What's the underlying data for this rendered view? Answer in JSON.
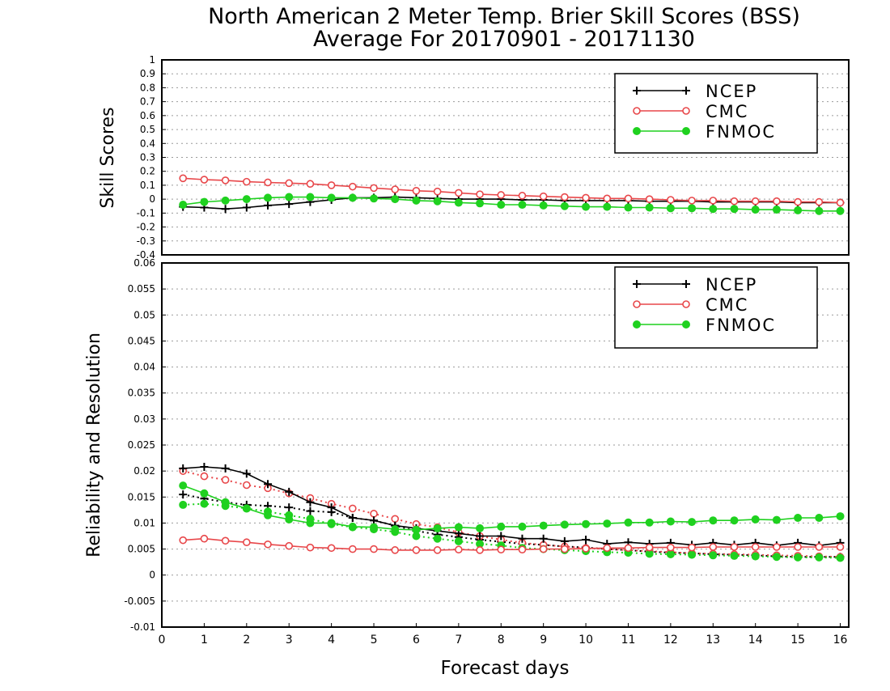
{
  "title_line1": "North American 2 Meter Temp. Brier Skill Scores (BSS)",
  "title_line2": "Average For 20170901 - 20171130",
  "colors": {
    "NCEP": "#000000",
    "CMC": "#e8474a",
    "FNMOC": "#1fd11f"
  },
  "chart_data": [
    {
      "type": "line",
      "ylabel": "Skill Scores",
      "xlabel": "",
      "xlim": [
        0,
        16.2
      ],
      "ylim": [
        -0.4,
        1
      ],
      "yticks": [
        "1",
        "0.9",
        "0.8",
        "0.7",
        "0.6",
        "0.5",
        "0.4",
        "0.3",
        "0.2",
        "0.1",
        "0",
        "-0.1",
        "-0.2",
        "-0.3",
        "-0.4"
      ],
      "grid": "dotted horizontal",
      "legend": "top-right",
      "x": [
        0.5,
        1,
        1.5,
        2,
        2.5,
        3,
        3.5,
        4,
        4.5,
        5,
        5.5,
        6,
        6.5,
        7,
        7.5,
        8,
        8.5,
        9,
        9.5,
        10,
        10.5,
        11,
        11.5,
        12,
        12.5,
        13,
        13.5,
        14,
        14.5,
        15,
        15.5,
        16
      ],
      "series": [
        {
          "name": "NCEP",
          "marker": "plus",
          "values": [
            -0.055,
            -0.06,
            -0.07,
            -0.06,
            -0.045,
            -0.035,
            -0.02,
            -0.005,
            0.01,
            0.01,
            0.015,
            0.01,
            0.005,
            0.0,
            0.0,
            0.0,
            -0.005,
            -0.005,
            -0.01,
            -0.01,
            -0.01,
            -0.01,
            -0.015,
            -0.015,
            -0.015,
            -0.02,
            -0.02,
            -0.02,
            -0.02,
            -0.025,
            -0.025,
            -0.025
          ]
        },
        {
          "name": "CMC",
          "marker": "open-circle",
          "values": [
            0.15,
            0.14,
            0.135,
            0.125,
            0.12,
            0.115,
            0.11,
            0.1,
            0.09,
            0.08,
            0.07,
            0.06,
            0.055,
            0.045,
            0.035,
            0.03,
            0.025,
            0.02,
            0.015,
            0.01,
            0.005,
            0.005,
            0.0,
            -0.005,
            -0.01,
            -0.01,
            -0.015,
            -0.015,
            -0.015,
            -0.02,
            -0.02,
            -0.025
          ]
        },
        {
          "name": "FNMOC",
          "marker": "filled-circle",
          "values": [
            -0.04,
            -0.02,
            -0.01,
            0.0,
            0.01,
            0.015,
            0.015,
            0.01,
            0.01,
            0.005,
            0.0,
            -0.01,
            -0.015,
            -0.025,
            -0.03,
            -0.04,
            -0.04,
            -0.045,
            -0.05,
            -0.055,
            -0.055,
            -0.06,
            -0.06,
            -0.065,
            -0.065,
            -0.07,
            -0.07,
            -0.075,
            -0.075,
            -0.08,
            -0.085,
            -0.085
          ]
        }
      ]
    },
    {
      "type": "line",
      "ylabel": "Reliability and Resolution",
      "xlabel": "Forecast days",
      "xlim": [
        0,
        16.2
      ],
      "ylim": [
        -0.01,
        0.06
      ],
      "yticks": [
        "0.06",
        "0.055",
        "0.05",
        "0.045",
        "0.04",
        "0.035",
        "0.03",
        "0.025",
        "0.02",
        "0.015",
        "0.01",
        "0.005",
        "0",
        "-0.005",
        "-0.01"
      ],
      "xticks": [
        "0",
        "1",
        "2",
        "3",
        "4",
        "5",
        "6",
        "7",
        "8",
        "9",
        "10",
        "11",
        "12",
        "13",
        "14",
        "15",
        "16"
      ],
      "grid": "dotted horizontal",
      "legend": "top-right",
      "x": [
        0.5,
        1,
        1.5,
        2,
        2.5,
        3,
        3.5,
        4,
        4.5,
        5,
        5.5,
        6,
        6.5,
        7,
        7.5,
        8,
        8.5,
        9,
        9.5,
        10,
        10.5,
        11,
        11.5,
        12,
        12.5,
        13,
        13.5,
        14,
        14.5,
        15,
        15.5,
        16
      ],
      "series": [
        {
          "name": "NCEP",
          "marker": "plus",
          "linestyle": "solid",
          "values": [
            0.0205,
            0.0208,
            0.0205,
            0.0195,
            0.0175,
            0.016,
            0.014,
            0.013,
            0.011,
            0.0105,
            0.0095,
            0.009,
            0.0085,
            0.008,
            0.0075,
            0.0075,
            0.007,
            0.007,
            0.0065,
            0.0068,
            0.006,
            0.0063,
            0.006,
            0.0062,
            0.0058,
            0.0062,
            0.0058,
            0.0062,
            0.0057,
            0.0062,
            0.0057,
            0.0062
          ]
        },
        {
          "name": "CMC",
          "marker": "open-circle",
          "linestyle": "solid",
          "values": [
            0.0067,
            0.007,
            0.0066,
            0.0063,
            0.0059,
            0.0056,
            0.0053,
            0.0052,
            0.005,
            0.005,
            0.0048,
            0.0048,
            0.0048,
            0.0049,
            0.0048,
            0.0049,
            0.0049,
            0.005,
            0.005,
            0.0051,
            0.0052,
            0.0052,
            0.0053,
            0.0053,
            0.0053,
            0.0054,
            0.0054,
            0.0054,
            0.0054,
            0.0054,
            0.0054,
            0.0054
          ]
        },
        {
          "name": "FNMOC",
          "marker": "filled-circle",
          "linestyle": "solid",
          "values": [
            0.0172,
            0.0157,
            0.014,
            0.0128,
            0.0115,
            0.0107,
            0.01,
            0.01,
            0.0093,
            0.0092,
            0.0088,
            0.0087,
            0.009,
            0.0092,
            0.009,
            0.0093,
            0.0093,
            0.0095,
            0.0097,
            0.0098,
            0.0099,
            0.0101,
            0.0101,
            0.0103,
            0.0102,
            0.0105,
            0.0105,
            0.0107,
            0.0106,
            0.011,
            0.011,
            0.0113
          ]
        },
        {
          "name": "",
          "ref": "NCEP",
          "marker": "plus",
          "linestyle": "dotted",
          "values": [
            0.0155,
            0.0147,
            0.014,
            0.0135,
            0.0133,
            0.013,
            0.0123,
            0.0121,
            0.011,
            0.0105,
            0.0095,
            0.0085,
            0.0078,
            0.0073,
            0.0068,
            0.0064,
            0.006,
            0.0058,
            0.0055,
            0.0053,
            0.005,
            0.0048,
            0.0045,
            0.0043,
            0.0042,
            0.004,
            0.0039,
            0.0038,
            0.0036,
            0.0035,
            0.0035,
            0.0035
          ]
        },
        {
          "name": "",
          "ref": "CMC",
          "marker": "open-circle",
          "linestyle": "dotted",
          "values": [
            0.02,
            0.019,
            0.0183,
            0.0173,
            0.0167,
            0.0157,
            0.0148,
            0.0137,
            0.0128,
            0.0118,
            0.0108,
            0.0098,
            0.0092,
            0.0082,
            0.0075,
            0.0068,
            0.0062,
            0.0058,
            0.0055,
            0.0052,
            0.005,
            0.0048,
            0.0046,
            0.0044,
            0.0042,
            0.0041,
            0.004,
            0.0039,
            0.0038,
            0.0037,
            0.0036,
            0.0035
          ]
        },
        {
          "name": "",
          "ref": "FNMOC",
          "marker": "filled-circle",
          "linestyle": "dotted",
          "values": [
            0.0135,
            0.0137,
            0.0133,
            0.0128,
            0.0122,
            0.0115,
            0.0108,
            0.0098,
            0.0092,
            0.0088,
            0.0083,
            0.0075,
            0.007,
            0.0065,
            0.006,
            0.0057,
            0.0052,
            0.005,
            0.0048,
            0.0046,
            0.0044,
            0.0043,
            0.0041,
            0.004,
            0.0039,
            0.0038,
            0.0037,
            0.0036,
            0.0035,
            0.0034,
            0.0034,
            0.0033
          ]
        }
      ]
    }
  ]
}
